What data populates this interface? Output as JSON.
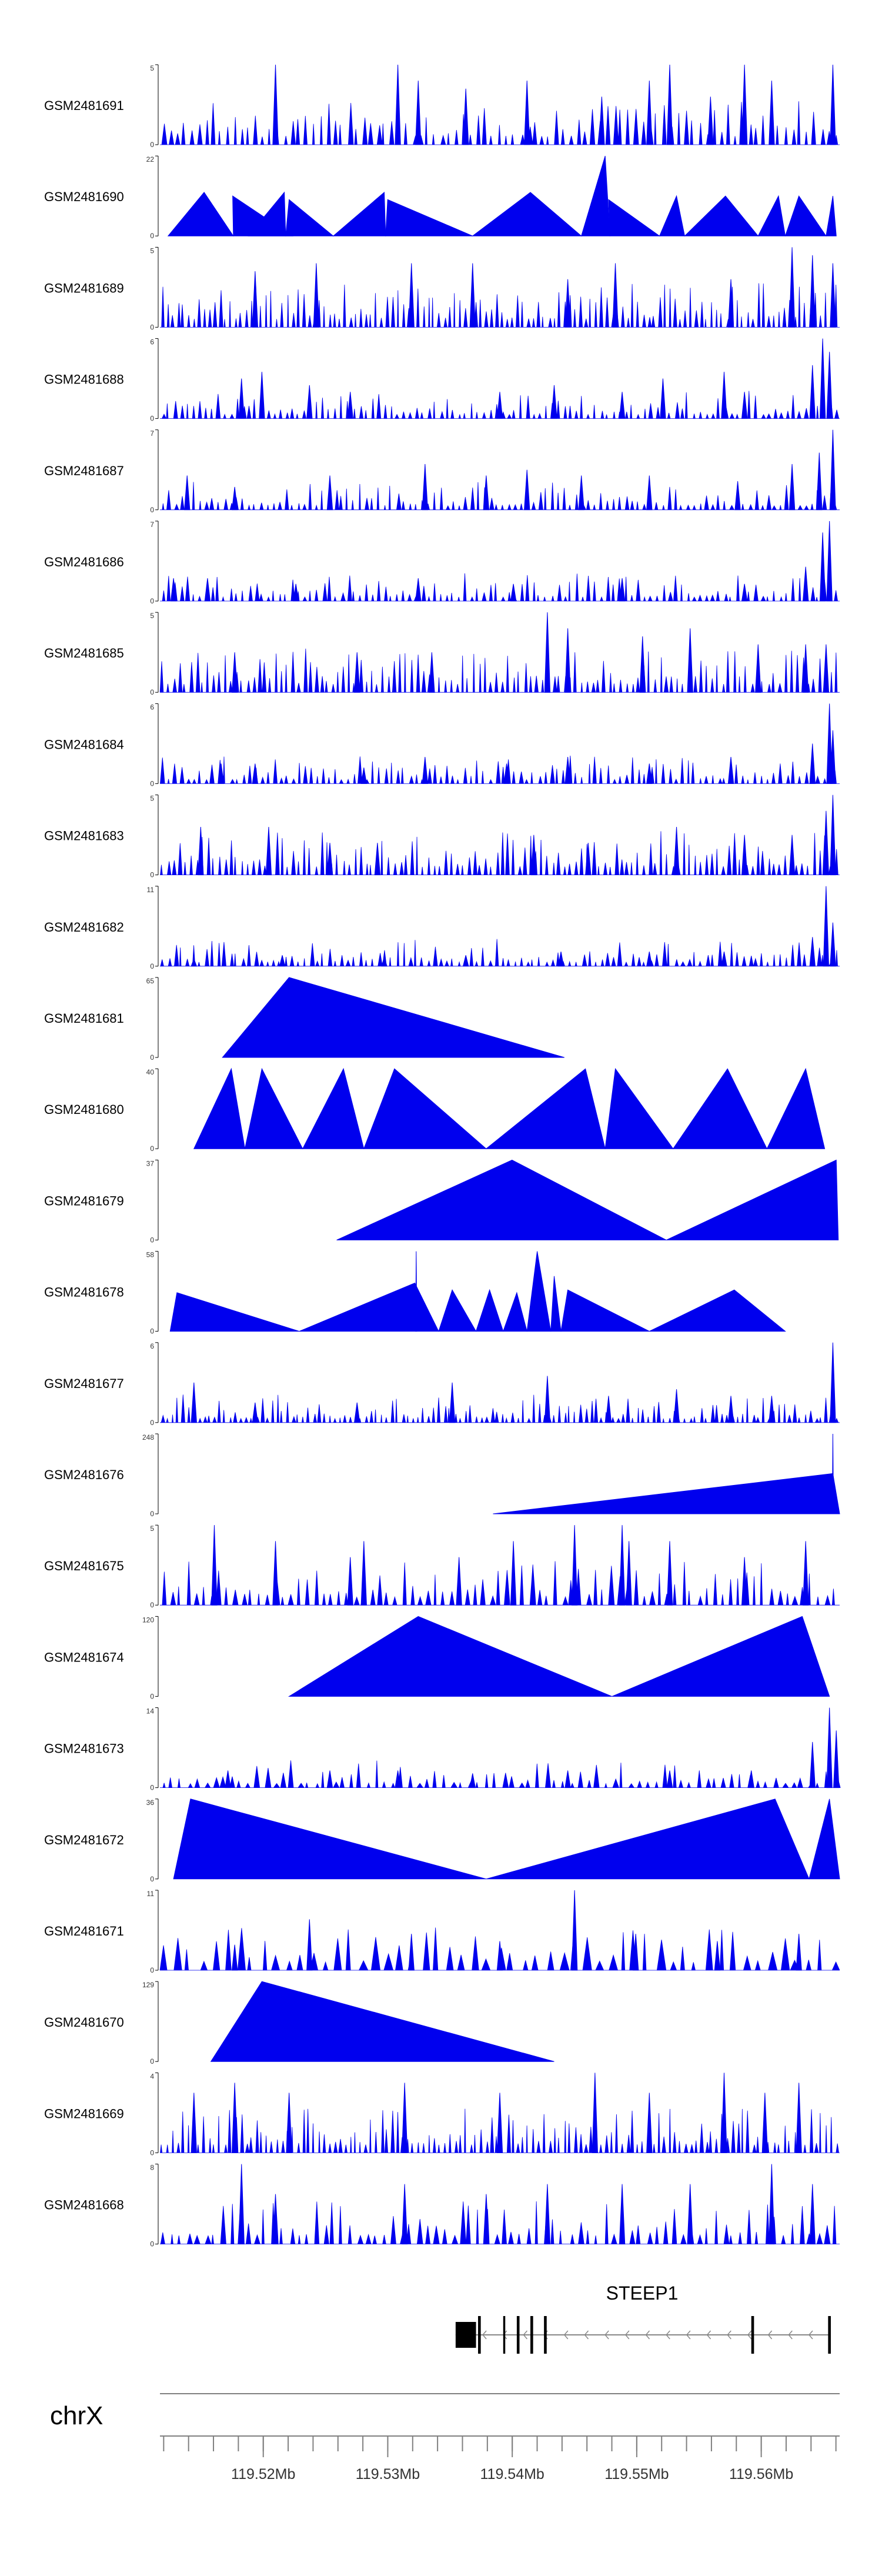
{
  "chart_data": {
    "type": "area",
    "title": "",
    "x_range": [
      119.5117,
      119.5663
    ],
    "x_unit": "Mb",
    "tracks": [
      {
        "name": "GSM2481691",
        "ymax": 5,
        "profile": "spiky",
        "count": 95,
        "peaks": [
          [
            0.17,
            5
          ],
          [
            0.35,
            5
          ],
          [
            0.38,
            4
          ],
          [
            0.45,
            3.5
          ],
          [
            0.54,
            4
          ],
          [
            0.65,
            3
          ],
          [
            0.72,
            4
          ],
          [
            0.75,
            5
          ],
          [
            0.81,
            3
          ],
          [
            0.86,
            5
          ],
          [
            0.9,
            4
          ],
          [
            0.99,
            5
          ]
        ]
      },
      {
        "name": "GSM2481690",
        "ymax": 22,
        "profile": "triangles",
        "tri": [
          [
            0.012,
            0.065,
            0.108,
            12
          ],
          [
            0.108,
            0.107,
            0.195,
            11
          ],
          [
            0.13,
            0.183,
            0.185,
            12
          ],
          [
            0.185,
            0.19,
            0.255,
            10
          ],
          [
            0.255,
            0.33,
            0.332,
            12
          ],
          [
            0.332,
            0.335,
            0.46,
            10
          ],
          [
            0.46,
            0.545,
            0.62,
            12
          ],
          [
            0.62,
            0.655,
            0.662,
            22
          ],
          [
            0.662,
            0.66,
            0.735,
            10
          ],
          [
            0.735,
            0.76,
            0.772,
            11
          ],
          [
            0.772,
            0.832,
            0.88,
            11
          ],
          [
            0.88,
            0.91,
            0.92,
            11
          ],
          [
            0.92,
            0.94,
            0.98,
            11
          ],
          [
            0.98,
            0.99,
            0.995,
            11
          ]
        ]
      },
      {
        "name": "GSM2481689",
        "ymax": 5,
        "profile": "spiky",
        "count": 130,
        "peaks": [
          [
            0.14,
            3.5
          ],
          [
            0.23,
            4
          ],
          [
            0.37,
            4
          ],
          [
            0.46,
            4
          ],
          [
            0.6,
            3
          ],
          [
            0.67,
            4
          ],
          [
            0.84,
            3
          ],
          [
            0.93,
            5
          ],
          [
            0.96,
            4.5
          ],
          [
            0.99,
            4
          ]
        ]
      },
      {
        "name": "GSM2481688",
        "ymax": 6,
        "profile": "low",
        "count": 110,
        "peaks": [
          [
            0.12,
            3
          ],
          [
            0.15,
            3.5
          ],
          [
            0.22,
            2.5
          ],
          [
            0.28,
            2
          ],
          [
            0.5,
            2
          ],
          [
            0.58,
            2.5
          ],
          [
            0.68,
            2
          ],
          [
            0.74,
            3
          ],
          [
            0.83,
            3.5
          ],
          [
            0.86,
            2
          ],
          [
            0.96,
            4
          ],
          [
            0.975,
            6
          ],
          [
            0.985,
            5
          ]
        ]
      },
      {
        "name": "GSM2481687",
        "ymax": 7,
        "profile": "low",
        "count": 110,
        "peaks": [
          [
            0.04,
            3
          ],
          [
            0.11,
            2
          ],
          [
            0.25,
            3
          ],
          [
            0.39,
            4
          ],
          [
            0.48,
            3
          ],
          [
            0.54,
            3.5
          ],
          [
            0.62,
            3
          ],
          [
            0.72,
            3
          ],
          [
            0.85,
            2.5
          ],
          [
            0.93,
            4
          ],
          [
            0.97,
            5
          ],
          [
            0.99,
            7
          ]
        ]
      },
      {
        "name": "GSM2481686",
        "ymax": 7,
        "profile": "low",
        "count": 110,
        "peaks": [
          [
            0.02,
            2
          ],
          [
            0.07,
            2
          ],
          [
            0.2,
            1.5
          ],
          [
            0.38,
            2
          ],
          [
            0.52,
            1.5
          ],
          [
            0.68,
            2
          ],
          [
            0.86,
            1.5
          ],
          [
            0.95,
            3
          ],
          [
            0.975,
            6
          ],
          [
            0.985,
            7
          ]
        ]
      },
      {
        "name": "GSM2481685",
        "ymax": 5,
        "profile": "spiky",
        "count": 120,
        "peaks": [
          [
            0.11,
            2.5
          ],
          [
            0.29,
            2.5
          ],
          [
            0.4,
            2.5
          ],
          [
            0.57,
            5
          ],
          [
            0.6,
            4
          ],
          [
            0.71,
            3.5
          ],
          [
            0.78,
            4
          ],
          [
            0.88,
            3
          ],
          [
            0.95,
            3
          ],
          [
            0.98,
            3
          ]
        ]
      },
      {
        "name": "GSM2481684",
        "ymax": 6,
        "profile": "low",
        "count": 110,
        "peaks": [
          [
            0.09,
            1.5
          ],
          [
            0.14,
            1.5
          ],
          [
            0.3,
            1.2
          ],
          [
            0.39,
            2
          ],
          [
            0.51,
            1.5
          ],
          [
            0.6,
            2
          ],
          [
            0.72,
            1.5
          ],
          [
            0.84,
            2
          ],
          [
            0.96,
            3
          ],
          [
            0.985,
            6
          ],
          [
            0.99,
            4
          ]
        ]
      },
      {
        "name": "GSM2481683",
        "ymax": 5,
        "profile": "spiky",
        "count": 120,
        "peaks": [
          [
            0.06,
            3
          ],
          [
            0.16,
            3
          ],
          [
            0.25,
            2
          ],
          [
            0.32,
            2
          ],
          [
            0.55,
            2.5
          ],
          [
            0.63,
            2
          ],
          [
            0.76,
            3
          ],
          [
            0.86,
            2.5
          ],
          [
            0.93,
            2.5
          ],
          [
            0.98,
            4
          ],
          [
            0.99,
            5
          ]
        ]
      },
      {
        "name": "GSM2481682",
        "ymax": 11,
        "profile": "low",
        "count": 110,
        "peaks": [
          [
            0.05,
            1
          ],
          [
            0.18,
            1.5
          ],
          [
            0.33,
            1.2
          ],
          [
            0.45,
            1.5
          ],
          [
            0.59,
            2
          ],
          [
            0.72,
            2
          ],
          [
            0.83,
            2
          ],
          [
            0.96,
            4
          ],
          [
            0.98,
            11
          ],
          [
            0.99,
            6
          ]
        ]
      },
      {
        "name": "GSM2481681",
        "ymax": 65,
        "profile": "triangles",
        "tri": [
          [
            0.092,
            0.19,
            0.595,
            65
          ]
        ]
      },
      {
        "name": "GSM2481680",
        "ymax": 40,
        "profile": "triangles",
        "tri": [
          [
            0.05,
            0.105,
            0.125,
            40
          ],
          [
            0.125,
            0.15,
            0.21,
            40
          ],
          [
            0.21,
            0.27,
            0.3,
            40
          ],
          [
            0.3,
            0.345,
            0.48,
            40
          ],
          [
            0.48,
            0.626,
            0.655,
            40
          ],
          [
            0.655,
            0.67,
            0.755,
            40
          ],
          [
            0.755,
            0.835,
            0.893,
            40
          ],
          [
            0.893,
            0.95,
            0.978,
            40
          ]
        ]
      },
      {
        "name": "GSM2481679",
        "ymax": 37,
        "profile": "triangles",
        "tri": [
          [
            0.26,
            0.518,
            0.745,
            37
          ],
          [
            0.745,
            0.995,
            0.998,
            37
          ]
        ]
      },
      {
        "name": "GSM2481678",
        "ymax": 58,
        "profile": "triangles",
        "tri": [
          [
            0.015,
            0.025,
            0.205,
            28
          ],
          [
            0.205,
            0.375,
            0.41,
            35
          ],
          [
            0.376,
            0.377,
            0.378,
            58
          ],
          [
            0.41,
            0.43,
            0.465,
            30
          ],
          [
            0.465,
            0.485,
            0.505,
            30
          ],
          [
            0.505,
            0.525,
            0.54,
            28
          ],
          [
            0.54,
            0.555,
            0.575,
            58
          ],
          [
            0.575,
            0.58,
            0.59,
            40
          ],
          [
            0.59,
            0.6,
            0.72,
            30
          ],
          [
            0.72,
            0.845,
            0.92,
            30
          ]
        ]
      },
      {
        "name": "GSM2481677",
        "ymax": 6,
        "profile": "low",
        "count": 130,
        "peaks": [
          [
            0.05,
            3
          ],
          [
            0.14,
            1.5
          ],
          [
            0.29,
            1.5
          ],
          [
            0.43,
            3
          ],
          [
            0.57,
            3.5
          ],
          [
            0.66,
            2
          ],
          [
            0.76,
            2.5
          ],
          [
            0.84,
            2
          ],
          [
            0.9,
            2
          ],
          [
            0.99,
            6
          ]
        ]
      },
      {
        "name": "GSM2481676",
        "ymax": 248,
        "profile": "triangles",
        "tri": [
          [
            0.49,
            0.99,
            1.0,
            125
          ],
          [
            0.989,
            0.99,
            0.991,
            248
          ]
        ]
      },
      {
        "name": "GSM2481675",
        "ymax": 5,
        "profile": "spiky",
        "count": 85,
        "peaks": [
          [
            0.08,
            5
          ],
          [
            0.17,
            4
          ],
          [
            0.28,
            3
          ],
          [
            0.3,
            4
          ],
          [
            0.44,
            3
          ],
          [
            0.52,
            4
          ],
          [
            0.61,
            5
          ],
          [
            0.68,
            5
          ],
          [
            0.69,
            4
          ],
          [
            0.75,
            4
          ],
          [
            0.86,
            3
          ],
          [
            0.95,
            4
          ]
        ]
      },
      {
        "name": "GSM2481674",
        "ymax": 120,
        "profile": "triangles",
        "tri": [
          [
            0.19,
            0.38,
            0.665,
            120
          ],
          [
            0.665,
            0.945,
            0.985,
            120
          ]
        ]
      },
      {
        "name": "GSM2481673",
        "ymax": 14,
        "profile": "low",
        "count": 80,
        "peaks": [
          [
            0.1,
            3
          ],
          [
            0.25,
            3
          ],
          [
            0.35,
            3
          ],
          [
            0.46,
            2.5
          ],
          [
            0.6,
            3
          ],
          [
            0.75,
            3
          ],
          [
            0.87,
            3
          ],
          [
            0.96,
            8
          ],
          [
            0.985,
            14
          ],
          [
            0.995,
            10
          ]
        ]
      },
      {
        "name": "GSM2481672",
        "ymax": 36,
        "profile": "triangles",
        "tri": [
          [
            0.02,
            0.045,
            0.48,
            36
          ],
          [
            0.48,
            0.905,
            0.955,
            36
          ],
          [
            0.955,
            0.985,
            1.0,
            36
          ]
        ]
      },
      {
        "name": "GSM2481671",
        "ymax": 11,
        "profile": "spiky",
        "count": 55,
        "peaks": [
          [
            0.11,
            3.5
          ],
          [
            0.22,
            7
          ],
          [
            0.37,
            5
          ],
          [
            0.5,
            4
          ],
          [
            0.61,
            11
          ],
          [
            0.7,
            5
          ],
          [
            0.82,
            4
          ],
          [
            0.94,
            5
          ]
        ]
      },
      {
        "name": "GSM2481670",
        "ymax": 129,
        "profile": "triangles",
        "tri": [
          [
            0.075,
            0.15,
            0.58,
            129
          ]
        ]
      },
      {
        "name": "GSM2481669",
        "ymax": 4,
        "profile": "spiky",
        "count": 130,
        "peaks": [
          [
            0.05,
            3
          ],
          [
            0.11,
            3.5
          ],
          [
            0.19,
            3
          ],
          [
            0.36,
            3.5
          ],
          [
            0.5,
            3
          ],
          [
            0.64,
            4
          ],
          [
            0.72,
            3
          ],
          [
            0.83,
            4
          ],
          [
            0.89,
            3
          ],
          [
            0.94,
            3.5
          ]
        ]
      },
      {
        "name": "GSM2481668",
        "ymax": 8,
        "profile": "spiky",
        "count": 80,
        "peaks": [
          [
            0.12,
            8
          ],
          [
            0.17,
            5
          ],
          [
            0.36,
            6
          ],
          [
            0.48,
            5
          ],
          [
            0.57,
            6
          ],
          [
            0.68,
            6
          ],
          [
            0.78,
            6
          ],
          [
            0.9,
            8
          ],
          [
            0.96,
            6
          ]
        ]
      }
    ],
    "gene": {
      "name": "STEEP1",
      "strand": "-",
      "start_frac": 0.435,
      "end_frac": 0.985,
      "exons": [
        [
          0.435,
          0.465
        ],
        [
          0.468,
          0.472
        ],
        [
          0.505,
          0.508
        ],
        [
          0.525,
          0.529
        ],
        [
          0.545,
          0.549
        ],
        [
          0.565,
          0.569
        ],
        [
          0.87,
          0.874
        ],
        [
          0.983,
          0.987
        ]
      ]
    },
    "axis": {
      "chromosome": "chrX",
      "tick_labels": [
        "119.52Mb",
        "119.53Mb",
        "119.54Mb",
        "119.55Mb",
        "119.56Mb"
      ],
      "tick_values": [
        119.52,
        119.53,
        119.54,
        119.55,
        119.56
      ],
      "minor_step": 0.002
    },
    "style": {
      "fill": "#0000ee",
      "outline": "#000080",
      "text": "#000000",
      "axis_line": "#808080"
    }
  }
}
